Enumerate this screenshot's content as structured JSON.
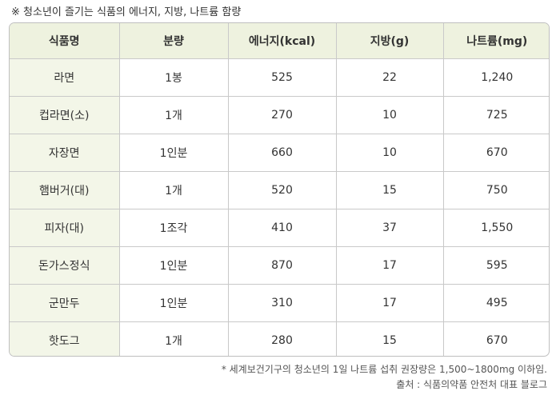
{
  "caption": "※ 청소년이 즐기는 식품의 에너지, 지방, 나트륨 함량",
  "table": {
    "headers": [
      "식품명",
      "분량",
      "에너지(kcal)",
      "지방(g)",
      "나트륨(mg)"
    ],
    "rows": [
      [
        "라면",
        "1봉",
        "525",
        "22",
        "1,240"
      ],
      [
        "컵라면(소)",
        "1개",
        "270",
        "10",
        "725"
      ],
      [
        "자장면",
        "1인분",
        "660",
        "10",
        "670"
      ],
      [
        "햄버거(대)",
        "1개",
        "520",
        "15",
        "750"
      ],
      [
        "피자(대)",
        "1조각",
        "410",
        "37",
        "1,550"
      ],
      [
        "돈가스정식",
        "1인분",
        "870",
        "17",
        "595"
      ],
      [
        "군만두",
        "1인분",
        "310",
        "17",
        "495"
      ],
      [
        "핫도그",
        "1개",
        "280",
        "15",
        "670"
      ]
    ]
  },
  "footnote": "* 세계보건기구의 청소년의 1일 나트륨 섭취 권장량은 1,500~1800mg 이하임.",
  "source": "출처 : 식품의약품 안전처 대표 블로그",
  "colors": {
    "header_bg": "#eef2df",
    "first_col_bg": "#f3f6e8",
    "border": "#c9c9c9"
  }
}
